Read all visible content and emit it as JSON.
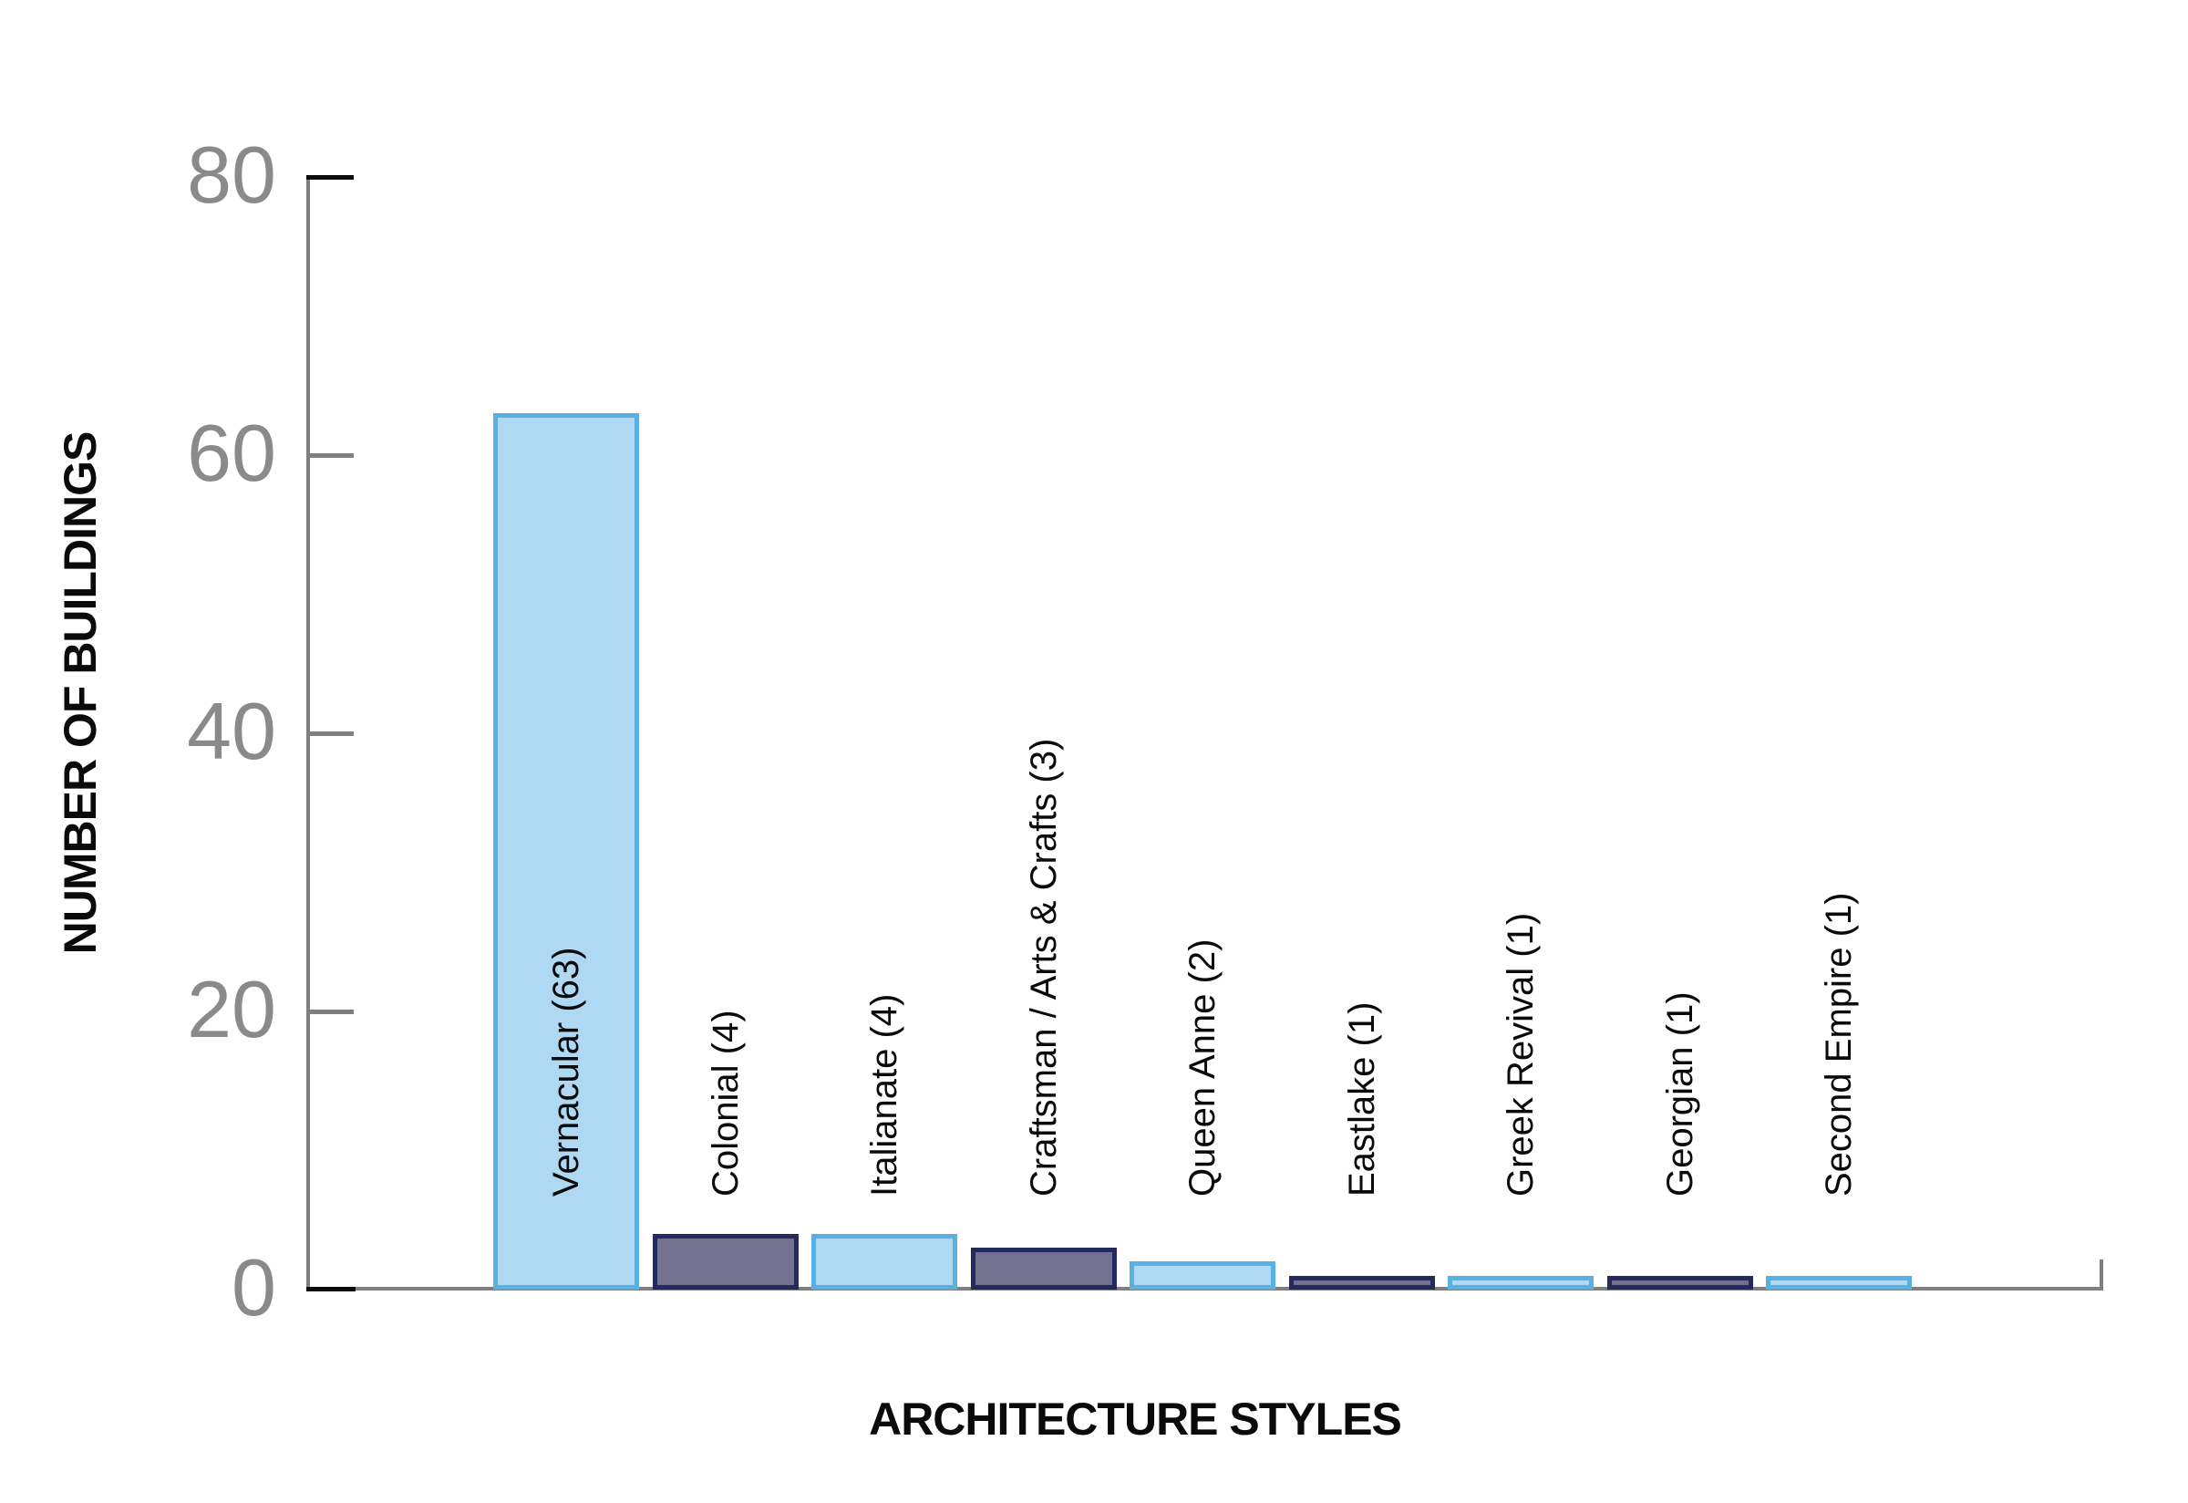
{
  "chart_data": {
    "type": "bar",
    "title": "",
    "xlabel": "ARCHITECTURE STYLES",
    "ylabel": "NUMBER OF BUILDINGS",
    "categories": [
      "Vernacular",
      "Colonial",
      "Italianate",
      "Craftsman / Arts & Crafts",
      "Queen Anne",
      "Eastlake",
      "Greek Revival",
      "Georgian",
      "Second Empire"
    ],
    "values": [
      63,
      4,
      4,
      3,
      2,
      1,
      1,
      1,
      1
    ],
    "bar_labels": [
      "Vernacular (63)",
      "Colonial (4)",
      "Italianate (4)",
      "Craftsman / Arts & Crafts (3)",
      "Queen Anne (2)",
      "Eastlake (1)",
      "Greek Revival (1)",
      "Georgian (1)",
      "Second Empire (1)"
    ],
    "bar_palette": [
      "light",
      "dark",
      "light",
      "dark",
      "light",
      "dark",
      "light",
      "dark",
      "light"
    ],
    "y_ticks": [
      0,
      20,
      40,
      60,
      80
    ],
    "ylim": [
      0,
      80
    ],
    "grid": false,
    "legend_position": "none",
    "colors": {
      "light_fill": "#AFD8F2",
      "light_border": "#57B1E3",
      "dark_fill": "#73718F",
      "dark_border": "#232A60",
      "axis": "#7F7F7F",
      "tick_label": "#8A8A8A",
      "label_text": "#0A0A0A"
    }
  }
}
